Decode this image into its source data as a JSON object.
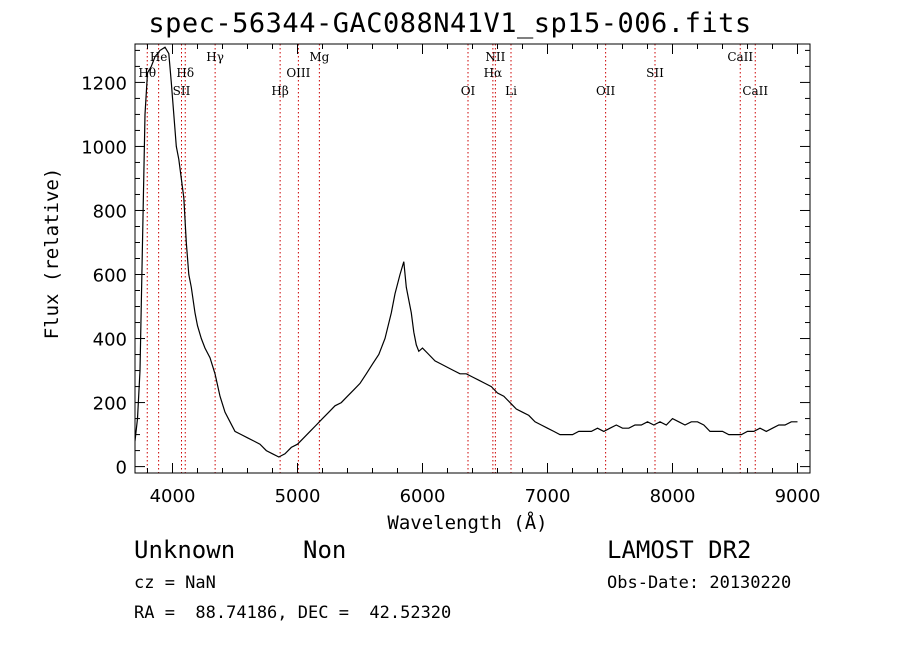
{
  "header": {
    "title": "spec-56344-GAC088N41V1_sp15-006.fits"
  },
  "info": {
    "object_type": "Unknown",
    "object_subtype": "Non",
    "survey": "LAMOST DR2",
    "redshift": "cz = NaN",
    "obs_date": "Obs-Date: 20130220",
    "coords": "RA =  88.74186, DEC =  42.52320"
  },
  "chart_data": {
    "type": "line",
    "title": "spec-56344-GAC088N41V1_sp15-006.fits",
    "xlabel": "Wavelength (Å)",
    "ylabel": "Flux (relative)",
    "xlim": [
      3700,
      9100
    ],
    "ylim": [
      -20,
      1320
    ],
    "xticks": [
      4000,
      5000,
      6000,
      7000,
      8000,
      9000
    ],
    "yticks": [
      0,
      200,
      400,
      600,
      800,
      1000,
      1200
    ],
    "grid": false,
    "line_color": "#000000",
    "marker_color": "#cc0000",
    "series": [
      {
        "x": [
          3700,
          3720,
          3740,
          3760,
          3780,
          3800,
          3830,
          3860,
          3900,
          3940,
          3970,
          3990,
          4010,
          4030,
          4050,
          4070,
          4090,
          4110,
          4130,
          4150,
          4180,
          4200,
          4230,
          4260,
          4300,
          4340,
          4380,
          4420,
          4460,
          4500,
          4550,
          4600,
          4650,
          4700,
          4750,
          4800,
          4850,
          4900,
          4950,
          5000,
          5050,
          5100,
          5150,
          5200,
          5250,
          5300,
          5350,
          5400,
          5450,
          5500,
          5550,
          5600,
          5650,
          5700,
          5750,
          5780,
          5820,
          5850,
          5870,
          5890,
          5910,
          5930,
          5950,
          5970,
          6000,
          6050,
          6100,
          6150,
          6200,
          6250,
          6300,
          6350,
          6400,
          6450,
          6500,
          6550,
          6600,
          6650,
          6700,
          6750,
          6800,
          6850,
          6900,
          6950,
          7000,
          7050,
          7100,
          7150,
          7200,
          7250,
          7300,
          7350,
          7400,
          7450,
          7500,
          7550,
          7600,
          7650,
          7700,
          7750,
          7800,
          7850,
          7900,
          7950,
          8000,
          8050,
          8100,
          8150,
          8200,
          8250,
          8300,
          8350,
          8400,
          8450,
          8500,
          8550,
          8600,
          8650,
          8700,
          8750,
          8800,
          8850,
          8900,
          8950,
          9000
        ],
        "y": [
          80,
          150,
          300,
          700,
          1100,
          1230,
          1250,
          1280,
          1300,
          1310,
          1290,
          1200,
          1100,
          1000,
          960,
          900,
          840,
          700,
          600,
          560,
          480,
          440,
          400,
          370,
          340,
          290,
          220,
          170,
          140,
          110,
          100,
          90,
          80,
          70,
          50,
          40,
          30,
          40,
          60,
          70,
          90,
          110,
          130,
          150,
          170,
          190,
          200,
          220,
          240,
          260,
          290,
          320,
          350,
          400,
          480,
          540,
          600,
          640,
          560,
          520,
          480,
          420,
          380,
          360,
          370,
          350,
          330,
          320,
          310,
          300,
          290,
          290,
          280,
          270,
          260,
          250,
          230,
          220,
          200,
          180,
          170,
          160,
          140,
          130,
          120,
          110,
          100,
          100,
          100,
          110,
          110,
          110,
          120,
          110,
          120,
          130,
          120,
          120,
          130,
          130,
          140,
          130,
          140,
          130,
          150,
          140,
          130,
          140,
          140,
          130,
          110,
          110,
          110,
          100,
          100,
          100,
          110,
          110,
          120,
          110,
          120,
          130,
          130,
          140,
          140
        ]
      }
    ],
    "lines": [
      {
        "label": "He",
        "wave": 3889,
        "row": 0
      },
      {
        "label": "Hθ",
        "wave": 3798,
        "row": 1
      },
      {
        "label": "Hδ",
        "wave": 4102,
        "row": 1
      },
      {
        "label": "SII",
        "wave": 4072,
        "row": 2
      },
      {
        "label": "Hγ",
        "wave": 4341,
        "row": 0
      },
      {
        "label": "Hβ",
        "wave": 4861,
        "row": 2
      },
      {
        "label": "OIII",
        "wave": 5007,
        "row": 1
      },
      {
        "label": "Mg",
        "wave": 5175,
        "row": 0
      },
      {
        "label": "OI",
        "wave": 6364,
        "row": 2
      },
      {
        "label": "NII",
        "wave": 6583,
        "row": 0
      },
      {
        "label": "Hα",
        "wave": 6563,
        "row": 1
      },
      {
        "label": "Li",
        "wave": 6708,
        "row": 2
      },
      {
        "label": "OII",
        "wave": 7465,
        "row": 2
      },
      {
        "label": "SII",
        "wave": 7860,
        "row": 1
      },
      {
        "label": "CaII",
        "wave": 8542,
        "row": 0
      },
      {
        "label": "CaII",
        "wave": 8662,
        "row": 2
      }
    ]
  }
}
